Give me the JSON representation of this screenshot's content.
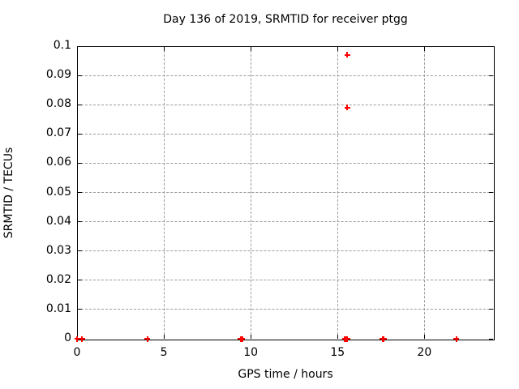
{
  "chart_data": {
    "type": "scatter",
    "title": "Day 136 of 2019, SRMTID for receiver ptgg",
    "xlabel": "GPS time / hours",
    "ylabel": "SRMTID / TECUs",
    "xlim": [
      0,
      24
    ],
    "ylim": [
      0,
      0.1
    ],
    "grid": true,
    "legend": "none",
    "marker": "plus",
    "x_ticks": [
      {
        "value": 0,
        "label": "0"
      },
      {
        "value": 5,
        "label": "5"
      },
      {
        "value": 10,
        "label": "10"
      },
      {
        "value": 15,
        "label": "15"
      },
      {
        "value": 20,
        "label": "20"
      }
    ],
    "y_ticks": [
      {
        "value": 0,
        "label": "0"
      },
      {
        "value": 0.01,
        "label": "0.01"
      },
      {
        "value": 0.02,
        "label": "0.02"
      },
      {
        "value": 0.03,
        "label": "0.03"
      },
      {
        "value": 0.04,
        "label": "0.04"
      },
      {
        "value": 0.05,
        "label": "0.05"
      },
      {
        "value": 0.06,
        "label": "0.06"
      },
      {
        "value": 0.07,
        "label": "0.07"
      },
      {
        "value": 0.08,
        "label": "0.08"
      },
      {
        "value": 0.09,
        "label": "0.09"
      },
      {
        "value": 0.1,
        "label": "0.1"
      }
    ],
    "series": [
      {
        "name": "SRMTID",
        "points": [
          [
            0.0,
            0
          ],
          [
            0.3,
            0
          ],
          [
            4.06,
            0
          ],
          [
            9.43,
            0
          ],
          [
            9.52,
            0
          ],
          [
            15.43,
            0
          ],
          [
            15.5,
            0
          ],
          [
            15.57,
            0
          ],
          [
            15.57,
            0.097
          ],
          [
            15.57,
            0.079
          ],
          [
            17.58,
            0
          ],
          [
            17.66,
            0
          ],
          [
            21.85,
            0
          ]
        ]
      }
    ],
    "colors": {
      "marker": "#ff0000",
      "grid": "#9b9b9b",
      "axis": "#000000",
      "text": "#000000",
      "background": "#ffffff"
    }
  }
}
